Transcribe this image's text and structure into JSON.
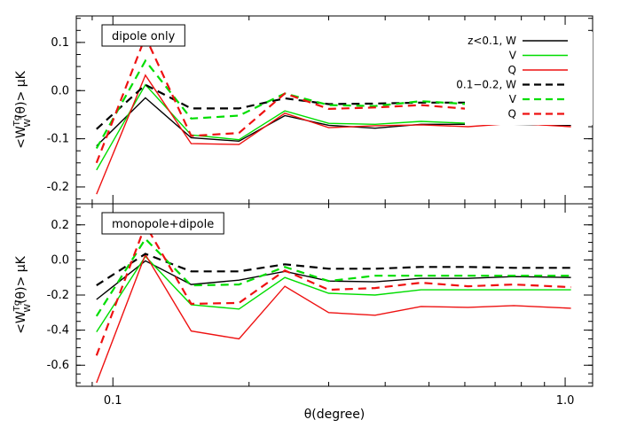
{
  "chart_data": {
    "type": "line",
    "xlabel": "θ(degree)",
    "ylabel": "<W_W^{Tg}(θ)> μK",
    "xscale": "log",
    "xlim": [
      0.083,
      1.15
    ],
    "xticks": [
      {
        "value": 0.1,
        "label": "0.1"
      },
      {
        "value": 1.0,
        "label": "1.0"
      }
    ],
    "x": [
      0.092,
      0.118,
      0.149,
      0.19,
      0.24,
      0.3,
      0.38,
      0.48,
      0.61,
      0.77,
      1.03
    ],
    "legend": {
      "position": "top-right",
      "entries": [
        {
          "label": "z<0.1, W",
          "color": "#000000",
          "style": "solid"
        },
        {
          "label": "V",
          "color": "#00dd00",
          "style": "solid"
        },
        {
          "label": "Q",
          "color": "#ee1111",
          "style": "solid"
        },
        {
          "label": "0.1−0.2, W",
          "color": "#000000",
          "style": "dashed"
        },
        {
          "label": "V",
          "color": "#00dd00",
          "style": "dashed"
        },
        {
          "label": "Q",
          "color": "#ee1111",
          "style": "dashed"
        }
      ]
    },
    "panels": [
      {
        "label": "dipole only",
        "ylim": [
          -0.235,
          0.155
        ],
        "yticks": [
          {
            "value": 0.1,
            "label": "0.1"
          },
          {
            "value": 0.0,
            "label": "0.0"
          },
          {
            "value": -0.1,
            "label": "-0.1"
          },
          {
            "value": -0.2,
            "label": "-0.2"
          }
        ],
        "series": [
          {
            "color": "#000000",
            "style": "solid",
            "values": [
              -0.115,
              -0.015,
              -0.098,
              -0.105,
              -0.052,
              -0.072,
              -0.078,
              -0.07,
              -0.07,
              -0.07,
              -0.072
            ]
          },
          {
            "color": "#00dd00",
            "style": "solid",
            "values": [
              -0.165,
              0.012,
              -0.092,
              -0.102,
              -0.042,
              -0.068,
              -0.07,
              -0.064,
              -0.068,
              -0.064,
              -0.068
            ]
          },
          {
            "color": "#ee1111",
            "style": "solid",
            "values": [
              -0.215,
              0.032,
              -0.11,
              -0.112,
              -0.047,
              -0.077,
              -0.073,
              -0.071,
              -0.075,
              -0.068,
              -0.075
            ]
          },
          {
            "color": "#000000",
            "style": "dashed",
            "values": [
              -0.08,
              0.012,
              -0.037,
              -0.037,
              -0.016,
              -0.028,
              -0.027,
              -0.025,
              -0.025,
              -0.026,
              -0.028
            ]
          },
          {
            "color": "#00dd00",
            "style": "dashed",
            "values": [
              -0.12,
              0.062,
              -0.058,
              -0.052,
              -0.006,
              -0.03,
              -0.032,
              -0.022,
              -0.028,
              -0.026,
              -0.028
            ]
          },
          {
            "color": "#ee1111",
            "style": "dashed",
            "values": [
              -0.15,
              0.112,
              -0.094,
              -0.088,
              -0.006,
              -0.038,
              -0.035,
              -0.03,
              -0.038,
              -0.034,
              -0.04
            ]
          }
        ]
      },
      {
        "label": "monopole+dipole",
        "ylim": [
          -0.72,
          0.32
        ],
        "yticks": [
          {
            "value": 0.2,
            "label": "0.2"
          },
          {
            "value": 0.0,
            "label": "0.0"
          },
          {
            "value": -0.2,
            "label": "-0.2"
          },
          {
            "value": -0.4,
            "label": "-0.4"
          },
          {
            "value": -0.6,
            "label": "-0.6"
          }
        ],
        "series": [
          {
            "color": "#000000",
            "style": "solid",
            "values": [
              -0.225,
              -0.005,
              -0.14,
              -0.115,
              -0.065,
              -0.12,
              -0.125,
              -0.105,
              -0.105,
              -0.095,
              -0.1
            ]
          },
          {
            "color": "#00dd00",
            "style": "solid",
            "values": [
              -0.41,
              0.02,
              -0.255,
              -0.28,
              -0.1,
              -0.19,
              -0.2,
              -0.17,
              -0.17,
              -0.17,
              -0.17
            ]
          },
          {
            "color": "#ee1111",
            "style": "solid",
            "values": [
              -0.7,
              0.03,
              -0.405,
              -0.45,
              -0.15,
              -0.3,
              -0.315,
              -0.265,
              -0.27,
              -0.26,
              -0.275
            ]
          },
          {
            "color": "#000000",
            "style": "dashed",
            "values": [
              -0.145,
              0.035,
              -0.065,
              -0.065,
              -0.025,
              -0.05,
              -0.05,
              -0.04,
              -0.04,
              -0.045,
              -0.045
            ]
          },
          {
            "color": "#00dd00",
            "style": "dashed",
            "values": [
              -0.32,
              0.12,
              -0.145,
              -0.14,
              -0.04,
              -0.12,
              -0.09,
              -0.09,
              -0.09,
              -0.09,
              -0.09
            ]
          },
          {
            "color": "#ee1111",
            "style": "dashed",
            "values": [
              -0.545,
              0.2,
              -0.25,
              -0.245,
              -0.06,
              -0.17,
              -0.16,
              -0.13,
              -0.15,
              -0.14,
              -0.155
            ]
          }
        ]
      }
    ]
  }
}
